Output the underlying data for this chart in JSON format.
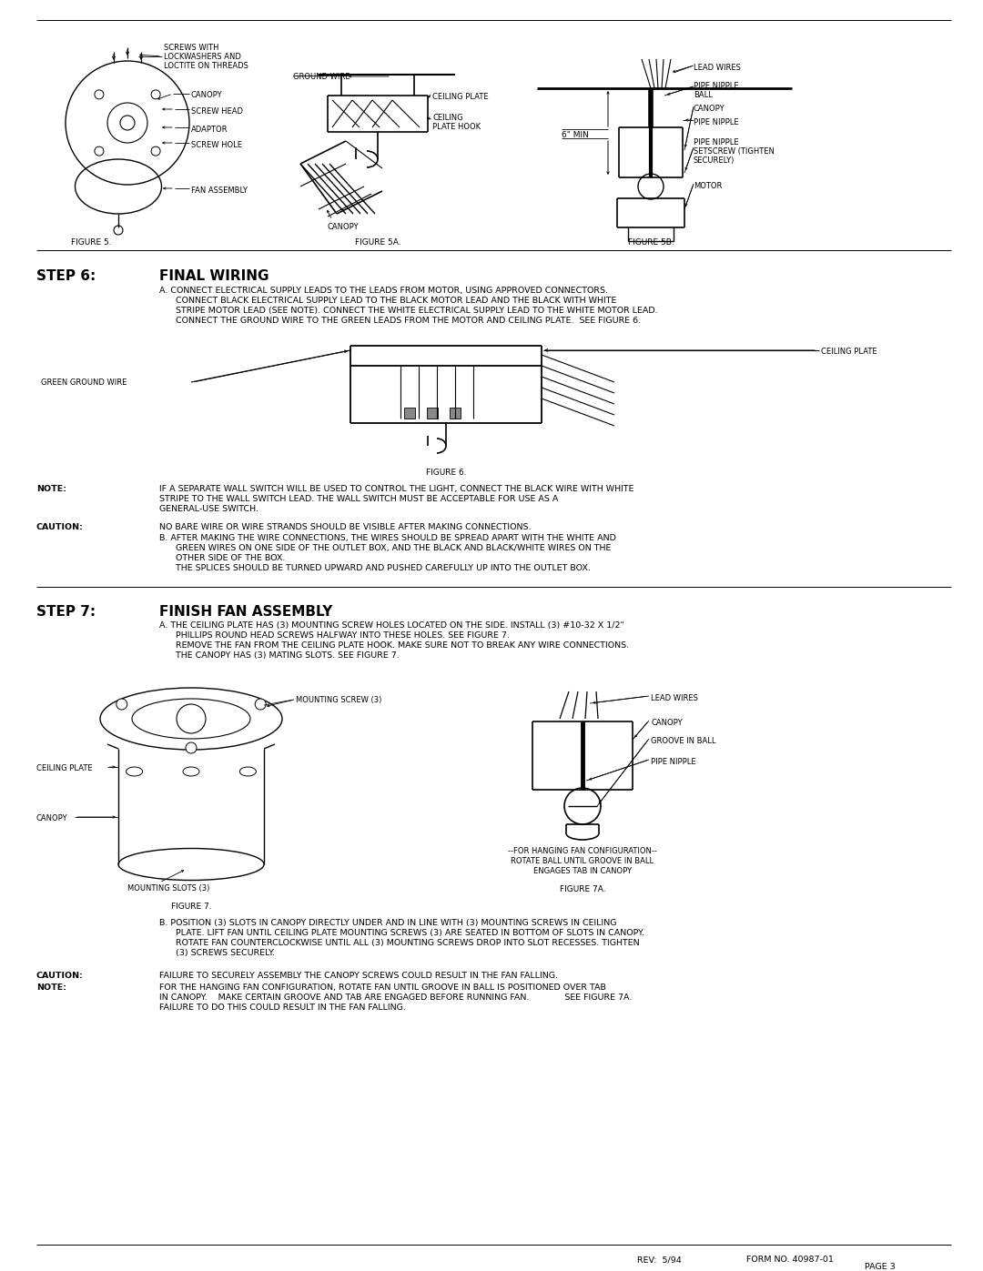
{
  "bg_color": "#ffffff",
  "fig5_label": "FIGURE 5.",
  "fig5a_label": "FIGURE 5A.",
  "fig5b_label": "FIGURE 5B.",
  "fig6_label": "FIGURE 6.",
  "fig7_label": "FIGURE 7.",
  "fig7a_label": "FIGURE 7A.",
  "step6_label": "STEP 6:",
  "step6_title": "FINAL WIRING",
  "step6_a": "A. CONNECT ELECTRICAL SUPPLY LEADS TO THE LEADS FROM MOTOR, USING APPROVED CONNECTORS.\n      CONNECT BLACK ELECTRICAL SUPPLY LEAD TO THE BLACK MOTOR LEAD AND THE BLACK WITH WHITE\n      STRIPE MOTOR LEAD (SEE NOTE). CONNECT THE WHITE ELECTRICAL SUPPLY LEAD TO THE WHITE MOTOR LEAD.\n      CONNECT THE GROUND WIRE TO THE GREEN LEADS FROM THE MOTOR AND CEILING PLATE.  SEE FIGURE 6.",
  "step7_label": "STEP 7:",
  "step7_title": "FINISH FAN ASSEMBLY",
  "step7_a": "A. THE CEILING PLATE HAS (3) MOUNTING SCREW HOLES LOCATED ON THE SIDE. INSTALL (3) #10-32 X 1/2\"\n      PHILLIPS ROUND HEAD SCREWS HALFWAY INTO THESE HOLES. SEE FIGURE 7.\n      REMOVE THE FAN FROM THE CEILING PLATE HOOK. MAKE SURE NOT TO BREAK ANY WIRE CONNECTIONS.\n      THE CANOPY HAS (3) MATING SLOTS. SEE FIGURE 7.",
  "step7_b": "B. POSITION (3) SLOTS IN CANOPY DIRECTLY UNDER AND IN LINE WITH (3) MOUNTING SCREWS IN CEILING\n      PLATE. LIFT FAN UNTIL CEILING PLATE MOUNTING SCREWS (3) ARE SEATED IN BOTTOM OF SLOTS IN CANOPY.\n      ROTATE FAN COUNTERCLOCKWISE UNTIL ALL (3) MOUNTING SCREWS DROP INTO SLOT RECESSES. TIGHTEN\n      (3) SCREWS SECURELY.",
  "note_label": "NOTE:",
  "note_text": "IF A SEPARATE WALL SWITCH WILL BE USED TO CONTROL THE LIGHT, CONNECT THE BLACK WIRE WITH WHITE\nSTRIPE TO THE WALL SWITCH LEAD. THE WALL SWITCH MUST BE ACCEPTABLE FOR USE AS A\nGENERAL-USE SWITCH.",
  "caution_label": "CAUTION:",
  "caution_text": "NO BARE WIRE OR WIRE STRANDS SHOULD BE VISIBLE AFTER MAKING CONNECTIONS.",
  "caution_b": "B. AFTER MAKING THE WIRE CONNECTIONS, THE WIRES SHOULD BE SPREAD APART WITH THE WHITE AND\n      GREEN WIRES ON ONE SIDE OF THE OUTLET BOX, AND THE BLACK AND BLACK/WHITE WIRES ON THE\n      OTHER SIDE OF THE BOX.\n      THE SPLICES SHOULD BE TURNED UPWARD AND PUSHED CAREFULLY UP INTO THE OUTLET BOX.",
  "caution2_label": "CAUTION:",
  "caution2_text": "FAILURE TO SECURELY ASSEMBLY THE CANOPY SCREWS COULD RESULT IN THE FAN FALLING.",
  "note2_label": "NOTE:",
  "note2_text": "FOR THE HANGING FAN CONFIGURATION, ROTATE FAN UNTIL GROOVE IN BALL IS POSITIONED OVER TAB\nIN CANOPY.    MAKE CERTAIN GROOVE AND TAB ARE ENGAGED BEFORE RUNNING FAN.             SEE FIGURE 7A.\nFAILURE TO DO THIS COULD RESULT IN THE FAN FALLING.",
  "rev_text": "REV:  5/94",
  "form_text": "FORM NO. 40987-01",
  "page_text": "PAGE 3",
  "lbl_screws": "SCREWS WITH\nLOCKWASHERS AND\nLOCTITE ON THREADS",
  "lbl_canopy": "CANOPY",
  "lbl_screwhead": "SCREW HEAD",
  "lbl_adaptor": "ADAPTOR",
  "lbl_screwhole": "SCREW HOLE",
  "lbl_fanassembly": "FAN ASSEMBLY",
  "lbl_groundwire": "GROUND WIRE",
  "lbl_ceilingplate": "CEILING PLATE",
  "lbl_ceilingplatehook": "CEILING\nPLATE HOOK",
  "lbl_canopy2": "CANOPY",
  "lbl_6min": "6\" MIN",
  "lbl_leadwires": "LEAD WIRES",
  "lbl_pipenippleball": "PIPE NIPPLE\nBALL",
  "lbl_canopy3": "CANOPY",
  "lbl_pipenipple": "PIPE NIPPLE",
  "lbl_pipenipplesetscrew": "PIPE NIPPLE\nSETSCREW (TIGHTEN\nSECURELY)",
  "lbl_motor": "MOTOR",
  "lbl_greengroundwire": "GREEN GROUND WIRE",
  "lbl_ceilingplate2": "CEILING PLATE",
  "lbl_mountingscrew": "MOUNTING SCREW (3)",
  "lbl_ceilingplate3": "CEILING PLATE",
  "lbl_canopy4": "CANOPY",
  "lbl_mountingslots": "MOUNTING SLOTS (3)",
  "lbl_leadwires2": "LEAD WIRES",
  "lbl_canopy5": "CANOPY",
  "lbl_grooveinball": "GROOVE IN BALL",
  "lbl_pipenipple2": "PIPE NIPPLE",
  "lbl_hangingfan": "--FOR HANGING FAN CONFIGURATION--\nROTATE BALL UNTIL GROOVE IN BALL\nENGAGES TAB IN CANOPY"
}
